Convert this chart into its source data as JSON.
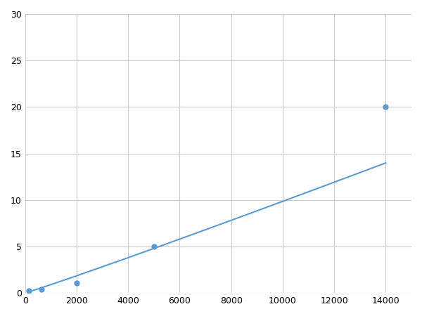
{
  "x_data": [
    156,
    625,
    2000,
    5000,
    14000
  ],
  "y_data": [
    0.2,
    0.4,
    1.1,
    5.0,
    20.0
  ],
  "line_color": "#5b9bd5",
  "marker_color": "#5b9bd5",
  "marker_size": 6,
  "line_width": 1.5,
  "xlim": [
    0,
    15000
  ],
  "ylim": [
    0,
    30
  ],
  "xticks": [
    0,
    2000,
    4000,
    6000,
    8000,
    10000,
    12000,
    14000
  ],
  "yticks": [
    0,
    5,
    10,
    15,
    20,
    25,
    30
  ],
  "grid_color": "#cccccc",
  "background_color": "#ffffff",
  "fig_width": 6.0,
  "fig_height": 4.5,
  "dpi": 100
}
